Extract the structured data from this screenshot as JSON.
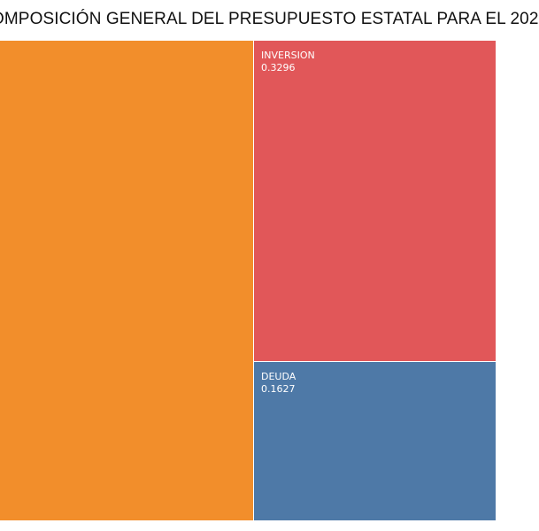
{
  "chart_data": {
    "type": "treemap",
    "title": "OMPOSICIÓN GENERAL DEL PRESUPUESTO ESTATAL PARA EL 202",
    "values": [
      0.5077,
      0.3296,
      0.1627
    ],
    "series": [
      {
        "name": "",
        "value": 0.5077,
        "color": "#f28e2b",
        "label_visible": false
      },
      {
        "name": "INVERSION",
        "value": 0.3296,
        "value_label": "0.3296",
        "color": "#e15759",
        "label_visible": true
      },
      {
        "name": "DEUDA",
        "value": 0.1627,
        "value_label": "0.1627",
        "color": "#4e79a7",
        "label_visible": true
      }
    ]
  }
}
